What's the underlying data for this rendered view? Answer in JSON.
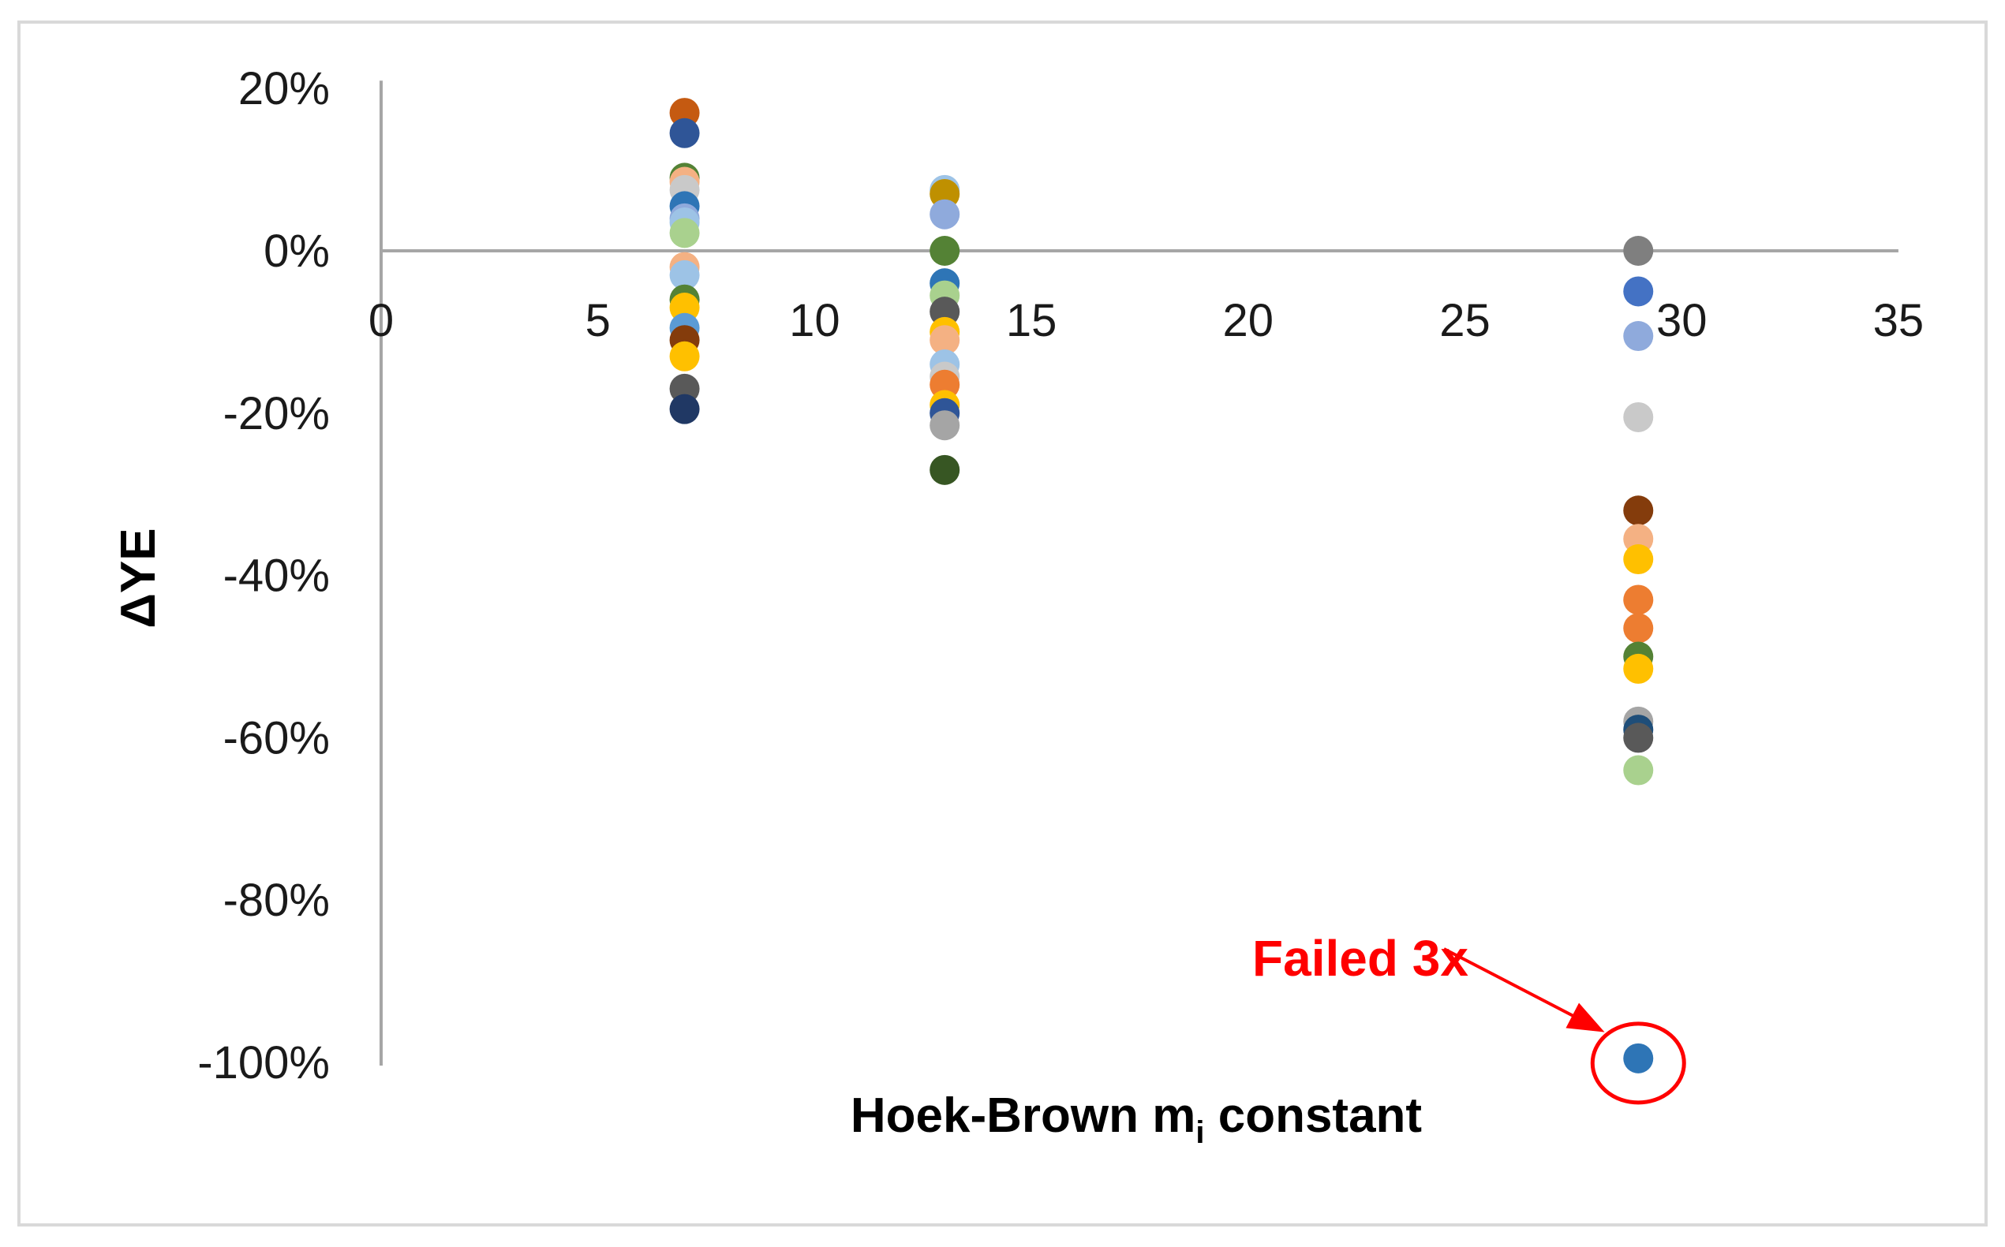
{
  "chart_data": {
    "type": "scatter",
    "title": "",
    "xlabel": "Hoek-Brown m",
    "xlabel_subscript": "i",
    "xlabel_suffix": " constant",
    "ylabel": "ΔYE",
    "xlim": [
      0,
      35
    ],
    "ylim": [
      -1.0,
      0.2
    ],
    "x_ticks": [
      0,
      5,
      10,
      15,
      20,
      25,
      30,
      35
    ],
    "x_tick_labels": [
      "0",
      "5",
      "10",
      "15",
      "20",
      "25",
      "30",
      "35"
    ],
    "y_ticks": [
      0.2,
      0,
      -0.2,
      -0.4,
      -0.6,
      -0.8,
      -1.0
    ],
    "y_tick_labels": [
      "20%",
      "0%",
      "-20%",
      "-40%",
      "-60%",
      "-80%",
      "-100%"
    ],
    "grid": false,
    "legend": "none",
    "points": [
      {
        "x": 7,
        "y": 0.17,
        "color": "#c55a11"
      },
      {
        "x": 7,
        "y": 0.145,
        "color": "#2f5597"
      },
      {
        "x": 7,
        "y": 0.09,
        "color": "#548235"
      },
      {
        "x": 7,
        "y": 0.085,
        "color": "#f4b183"
      },
      {
        "x": 7,
        "y": 0.075,
        "color": "#c9c9c9"
      },
      {
        "x": 7,
        "y": 0.055,
        "color": "#2e75b6"
      },
      {
        "x": 7,
        "y": 0.04,
        "color": "#8faadc"
      },
      {
        "x": 7,
        "y": 0.035,
        "color": "#9dc3e6"
      },
      {
        "x": 7,
        "y": 0.022,
        "color": "#a9d18e"
      },
      {
        "x": 7,
        "y": -0.02,
        "color": "#f4b183"
      },
      {
        "x": 7,
        "y": -0.03,
        "color": "#9dc3e6"
      },
      {
        "x": 7,
        "y": -0.06,
        "color": "#548235"
      },
      {
        "x": 7,
        "y": -0.07,
        "color": "#ffc000"
      },
      {
        "x": 7,
        "y": -0.095,
        "color": "#5b9bd5"
      },
      {
        "x": 7,
        "y": -0.11,
        "color": "#843c0c"
      },
      {
        "x": 7,
        "y": -0.13,
        "color": "#ffc000"
      },
      {
        "x": 7,
        "y": -0.17,
        "color": "#595959"
      },
      {
        "x": 7,
        "y": -0.195,
        "color": "#203864"
      },
      {
        "x": 13,
        "y": 0.075,
        "color": "#9dc3e6"
      },
      {
        "x": 13,
        "y": 0.07,
        "color": "#bf9000"
      },
      {
        "x": 13,
        "y": 0.045,
        "color": "#8faadc"
      },
      {
        "x": 13,
        "y": 0.0,
        "color": "#548235"
      },
      {
        "x": 13,
        "y": -0.04,
        "color": "#2e75b6"
      },
      {
        "x": 13,
        "y": -0.055,
        "color": "#a9d18e"
      },
      {
        "x": 13,
        "y": -0.075,
        "color": "#595959"
      },
      {
        "x": 13,
        "y": -0.1,
        "color": "#ffc000"
      },
      {
        "x": 13,
        "y": -0.11,
        "color": "#f4b183"
      },
      {
        "x": 13,
        "y": -0.14,
        "color": "#9dc3e6"
      },
      {
        "x": 13,
        "y": -0.155,
        "color": "#c9c9c9"
      },
      {
        "x": 13,
        "y": -0.165,
        "color": "#ed7d31"
      },
      {
        "x": 13,
        "y": -0.19,
        "color": "#ffc000"
      },
      {
        "x": 13,
        "y": -0.2,
        "color": "#2f5597"
      },
      {
        "x": 13,
        "y": -0.215,
        "color": "#a5a5a5"
      },
      {
        "x": 13,
        "y": -0.27,
        "color": "#375623"
      },
      {
        "x": 29,
        "y": 0.0,
        "color": "#7f7f7f"
      },
      {
        "x": 29,
        "y": -0.05,
        "color": "#4472c4"
      },
      {
        "x": 29,
        "y": -0.105,
        "color": "#8faadc"
      },
      {
        "x": 29,
        "y": -0.205,
        "color": "#c9c9c9"
      },
      {
        "x": 29,
        "y": -0.32,
        "color": "#843c0c"
      },
      {
        "x": 29,
        "y": -0.355,
        "color": "#f4b183"
      },
      {
        "x": 29,
        "y": -0.38,
        "color": "#ffc000"
      },
      {
        "x": 29,
        "y": -0.43,
        "color": "#ed7d31"
      },
      {
        "x": 29,
        "y": -0.465,
        "color": "#ed7d31"
      },
      {
        "x": 29,
        "y": -0.5,
        "color": "#548235"
      },
      {
        "x": 29,
        "y": -0.515,
        "color": "#ffc000"
      },
      {
        "x": 29,
        "y": -0.58,
        "color": "#a5a5a5"
      },
      {
        "x": 29,
        "y": -0.59,
        "color": "#1f4e79"
      },
      {
        "x": 29,
        "y": -0.6,
        "color": "#595959"
      },
      {
        "x": 29,
        "y": -0.64,
        "color": "#a9d18e"
      },
      {
        "x": 29,
        "y": -0.995,
        "color": "#2e75b6"
      }
    ],
    "annotations": [
      {
        "text": "Failed 3x",
        "color": "#ff0000",
        "target_x": 29,
        "target_y": -0.995
      }
    ]
  }
}
